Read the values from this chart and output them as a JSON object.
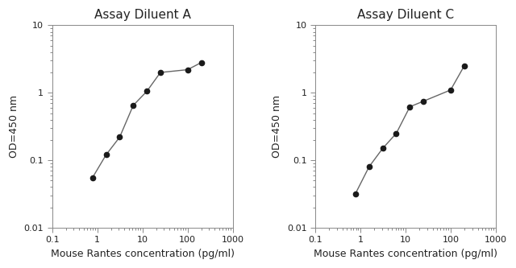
{
  "panel_A": {
    "title": "Assay Diluent A",
    "x": [
      0.78,
      1.56,
      3.13,
      6.25,
      12.5,
      25,
      100,
      200
    ],
    "y": [
      0.055,
      0.12,
      0.22,
      0.65,
      1.05,
      2.0,
      2.2,
      2.8
    ],
    "xlabel": "Mouse Rantes concentration (pg/ml)",
    "ylabel": "OD=450 nm",
    "xlim": [
      0.1,
      1000
    ],
    "ylim": [
      0.01,
      10
    ]
  },
  "panel_C": {
    "title": "Assay Diluent C",
    "x": [
      0.78,
      1.56,
      3.13,
      6.25,
      12.5,
      25,
      100,
      200
    ],
    "y": [
      0.032,
      0.08,
      0.15,
      0.25,
      0.62,
      0.75,
      1.1,
      2.5
    ],
    "xlabel": "Mouse Rantes concentration (pg/ml)",
    "ylabel": "OD=450 nm",
    "xlim": [
      0.1,
      1000
    ],
    "ylim": [
      0.01,
      10
    ]
  },
  "line_color": "#666666",
  "marker_color": "#1a1a1a",
  "marker_size": 4.5,
  "line_width": 1.0,
  "title_fontsize": 11,
  "label_fontsize": 9,
  "tick_fontsize": 8,
  "bg_color": "#ffffff",
  "spine_color": "#888888"
}
